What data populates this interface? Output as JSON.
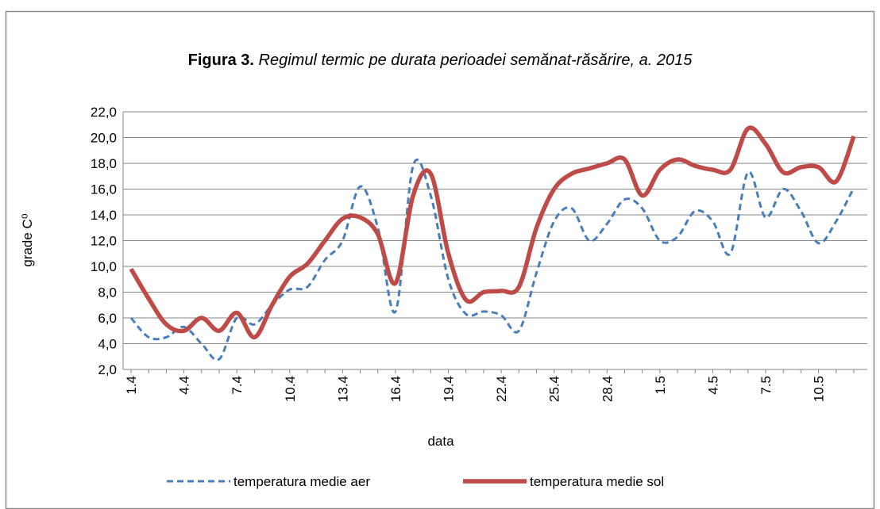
{
  "chart_data": {
    "type": "line",
    "title": [
      "Figura 3.",
      "Regimul termic pe durata perioadei semănat-răsărire, a. 2015"
    ],
    "x_label": "data",
    "y_label": "grade C⁰",
    "categories": [
      "1.4",
      null,
      null,
      "4.4",
      null,
      null,
      "7.4",
      null,
      null,
      "10.4",
      null,
      null,
      "13.4",
      null,
      null,
      "16.4",
      null,
      null,
      "19.4",
      null,
      null,
      "22.4",
      null,
      null,
      "25.4",
      null,
      null,
      "28.4",
      null,
      null,
      "1.5",
      null,
      null,
      "4.5",
      null,
      null,
      "7.5",
      null,
      null,
      "10.5",
      null,
      null
    ],
    "series": [
      {
        "name": "temperatura medie aer",
        "color": "#4a7ebb",
        "dash": true,
        "values": [
          6.0,
          4.5,
          4.5,
          5.3,
          4.0,
          2.8,
          6.0,
          5.5,
          7.0,
          8.2,
          8.4,
          10.5,
          12.0,
          16.2,
          13.0,
          6.5,
          17.8,
          15.5,
          9.0,
          6.3,
          6.5,
          6.2,
          5.0,
          9.5,
          13.5,
          14.5,
          12.0,
          13.3,
          15.2,
          14.5,
          12.0,
          12.3,
          14.3,
          13.5,
          11.0,
          17.3,
          13.8,
          16.0,
          14.3,
          11.8,
          13.5,
          16.1
        ]
      },
      {
        "name": "temperatura medie sol",
        "color": "#be4b48",
        "dash": false,
        "values": [
          9.8,
          7.5,
          5.5,
          5.0,
          6.0,
          5.0,
          6.4,
          4.5,
          7.0,
          9.2,
          10.2,
          12.0,
          13.7,
          13.8,
          12.5,
          8.7,
          15.5,
          17.2,
          11.0,
          7.4,
          8.0,
          8.1,
          8.4,
          13.0,
          16.0,
          17.2,
          17.6,
          18.0,
          18.3,
          15.5,
          17.5,
          18.3,
          17.8,
          17.5,
          17.5,
          20.7,
          19.5,
          17.3,
          17.7,
          17.7,
          16.6,
          20.1
        ]
      }
    ],
    "ylim": [
      2,
      22
    ],
    "yticks": [
      {
        "value": 2,
        "label": "2,0"
      },
      {
        "value": 4,
        "label": "4,0"
      },
      {
        "value": 6,
        "label": "6,0"
      },
      {
        "value": 8,
        "label": "8,0"
      },
      {
        "value": 10,
        "label": "10,0"
      },
      {
        "value": 12,
        "label": "12,0"
      },
      {
        "value": 14,
        "label": "14,0"
      },
      {
        "value": 16,
        "label": "16,0"
      },
      {
        "value": 18,
        "label": "18,0"
      },
      {
        "value": 20,
        "label": "20,0"
      },
      {
        "value": 22,
        "label": "22,0"
      }
    ],
    "grid": true,
    "legend": "bottom"
  }
}
